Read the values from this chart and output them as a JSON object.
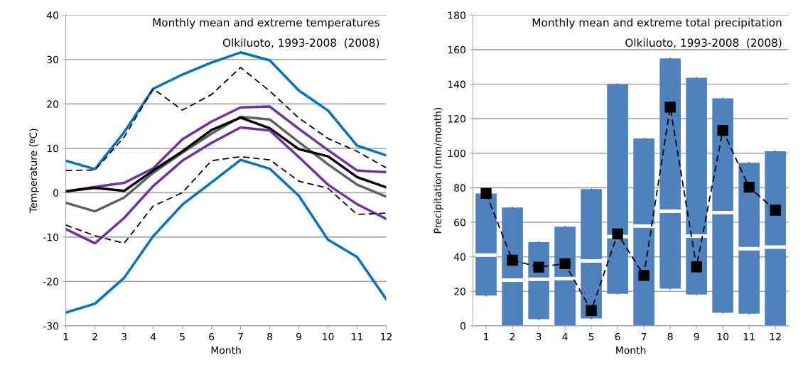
{
  "chart_data": [
    {
      "type": "line",
      "title": "Monthly mean and extreme temperatures",
      "subtitle": "Olkiluoto, 1993-2008  (2008)",
      "xlabel": "Month",
      "ylabel": "Temperature (ºC)",
      "x": [
        1,
        2,
        3,
        4,
        5,
        6,
        7,
        8,
        9,
        10,
        11,
        12
      ],
      "xlim": [
        1,
        12
      ],
      "xticks": [
        1,
        2,
        3,
        4,
        5,
        6,
        7,
        8,
        9,
        10,
        11,
        12
      ],
      "ylim": [
        -30,
        40
      ],
      "yticks": [
        -30,
        -20,
        -10,
        0,
        10,
        20,
        30,
        40
      ],
      "grid": "y",
      "series": [
        {
          "color": "#0070c0",
          "values": [
            7.2,
            5.3,
            13.6,
            23.4,
            26.6,
            29.3,
            31.6,
            29.8,
            23.0,
            18.5,
            10.6,
            8.4
          ]
        },
        {
          "color": "#000000",
          "line_style": "dashed",
          "values": [
            5.0,
            5.1,
            12.5,
            23.4,
            18.6,
            22.1,
            28.2,
            22.9,
            16.8,
            12.2,
            9.3,
            5.6
          ]
        },
        {
          "color": "#7030a0",
          "values": [
            0.3,
            1.3,
            2.2,
            5.5,
            12.0,
            16.0,
            19.2,
            19.4,
            14.4,
            9.6,
            5.0,
            4.6
          ]
        },
        {
          "color": "#606060",
          "values": [
            -2.3,
            -4.2,
            -1.1,
            4.5,
            9.0,
            13.3,
            17.1,
            16.5,
            11.4,
            6.4,
            1.8,
            -0.9
          ]
        },
        {
          "color": "#000000",
          "values": [
            0.3,
            1.1,
            0.4,
            5.0,
            9.3,
            14.1,
            16.9,
            14.5,
            9.8,
            8.2,
            3.5,
            1.2
          ]
        },
        {
          "color": "#7030a0",
          "values": [
            -8.2,
            -11.4,
            -5.7,
            1.5,
            7.2,
            11.2,
            14.7,
            14.0,
            8.0,
            1.8,
            -2.6,
            -5.9
          ]
        },
        {
          "color": "#000000",
          "line_style": "dashed",
          "values": [
            -7.3,
            -9.7,
            -11.4,
            -3.0,
            0.0,
            7.2,
            8.1,
            7.4,
            2.6,
            1.0,
            -4.9,
            -4.6
          ]
        },
        {
          "color": "#0070c0",
          "values": [
            -27.0,
            -25.0,
            -19.2,
            -9.8,
            -2.7,
            2.3,
            7.4,
            5.4,
            -0.7,
            -10.6,
            -14.5,
            -24.0
          ]
        }
      ]
    },
    {
      "type": "box",
      "title": "Monthly mean and extreme total precipitation",
      "subtitle": "Olkiluoto, 1993-2008  (2008)",
      "xlabel": "Month",
      "ylabel": "Precipitation (mm/month)",
      "categories": [
        "1",
        "2",
        "3",
        "4",
        "5",
        "6",
        "7",
        "8",
        "9",
        "10",
        "11",
        "12"
      ],
      "ylim": [
        0,
        180
      ],
      "yticks": [
        0,
        20,
        40,
        60,
        80,
        100,
        120,
        140,
        160,
        180
      ],
      "grid": "y",
      "series": [
        {
          "type": "box",
          "color": "#4f81bd",
          "boxes": [
            {
              "low": 17.5,
              "q1": 17.5,
              "median": 41,
              "q3": 76.7,
              "high": 76.7
            },
            {
              "low": 0,
              "q1": 0,
              "median": 26.5,
              "q3": 68.5,
              "high": 68.5
            },
            {
              "low": 3.9,
              "q1": 3.9,
              "median": 27,
              "q3": 48.5,
              "high": 48.5
            },
            {
              "low": 0,
              "q1": 0,
              "median": 27.4,
              "q3": 57.4,
              "high": 57.4
            },
            {
              "low": 4.3,
              "q1": 4.3,
              "median": 37.6,
              "q3": 79.2,
              "high": 79.2
            },
            {
              "low": 18.6,
              "q1": 18.6,
              "median": 51.7,
              "q3": 140,
              "high": 140
            },
            {
              "low": 0,
              "q1": 0,
              "median": 57.8,
              "q3": 108.5,
              "high": 108.5
            },
            {
              "low": 21.5,
              "q1": 21.5,
              "median": 66.4,
              "q3": 154.9,
              "high": 154.9
            },
            {
              "low": 18.2,
              "q1": 18.2,
              "median": 52,
              "q3": 143.7,
              "high": 143.7
            },
            {
              "low": 7.6,
              "q1": 7.6,
              "median": 65.6,
              "q3": 131.8,
              "high": 131.8
            },
            {
              "low": 7.1,
              "q1": 7.1,
              "median": 44.7,
              "q3": 94.4,
              "high": 94.4
            },
            {
              "low": 0,
              "q1": 0,
              "median": 45.6,
              "q3": 101.1,
              "high": 101.1
            }
          ]
        },
        {
          "type": "line",
          "marker": "square",
          "line_style": "dashed",
          "color": "#000000",
          "values": [
            76.7,
            38,
            34,
            36,
            8.9,
            53.3,
            29.2,
            126.7,
            34.2,
            113.2,
            80.3,
            67
          ]
        }
      ]
    }
  ]
}
